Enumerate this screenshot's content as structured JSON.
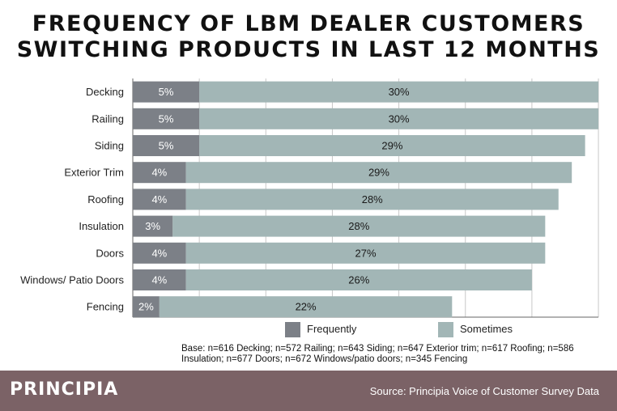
{
  "title_lines": [
    "FREQUENCY OF LBM DEALER CUSTOMERS",
    "SWITCHING PRODUCTS IN LAST 12 MONTHS"
  ],
  "colors": {
    "frequently": "#7c8087",
    "sometimes": "#a2b6b6",
    "footer": "#7b6266",
    "grid": "#c8c8c8"
  },
  "chart_data": {
    "type": "bar",
    "orientation": "horizontal",
    "stacked": true,
    "categories": [
      "Decking",
      "Railing",
      "Siding",
      "Exterior Trim",
      "Roofing",
      "Insulation",
      "Doors",
      "Windows/ Patio Doors",
      "Fencing"
    ],
    "series": [
      {
        "name": "Frequently",
        "values": [
          5,
          5,
          5,
          4,
          4,
          3,
          4,
          4,
          2
        ],
        "labels": [
          "5%",
          "5%",
          "5%",
          "4%",
          "4%",
          "3%",
          "4%",
          "4%",
          "2%"
        ]
      },
      {
        "name": "Sometimes",
        "values": [
          30,
          30,
          29,
          29,
          28,
          28,
          27,
          26,
          22
        ],
        "labels": [
          "30%",
          "30%",
          "29%",
          "29%",
          "28%",
          "28%",
          "27%",
          "26%",
          "22%"
        ]
      }
    ],
    "xlim": [
      0,
      35
    ],
    "grid": true,
    "legend_position": "bottom"
  },
  "legend": {
    "frequently": "Frequently",
    "sometimes": "Sometimes"
  },
  "base_note": "Base: n=616 Decking; n=572 Railing; n=643 Siding; n=647 Exterior trim; n=617 Roofing; n=586 Insulation; n=677 Doors; n=672 Windows/patio doors; n=345 Fencing",
  "footer": {
    "logo": "PRINCIPIA",
    "source": "Source: Principia Voice of Customer Survey Data"
  }
}
